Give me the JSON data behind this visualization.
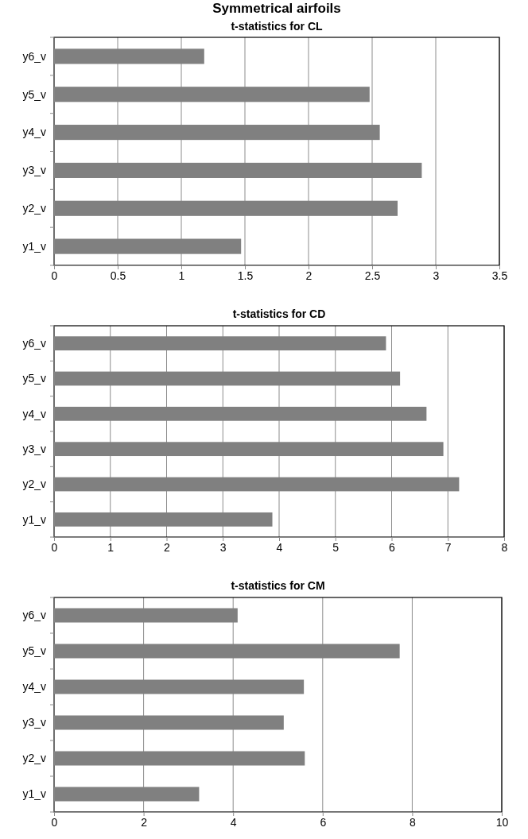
{
  "chart_data": [
    {
      "type": "bar",
      "orientation": "horizontal",
      "title": "Symmetrical airfoils",
      "subtitle": "t-statistics for CL",
      "categories": [
        "y6_v",
        "y5_v",
        "y4_v",
        "y3_v",
        "y2_v",
        "y1_v"
      ],
      "values": [
        1.18,
        2.48,
        2.56,
        2.89,
        2.7,
        1.47
      ],
      "color": "#808080",
      "xlim": [
        0,
        3.5
      ],
      "xticks": [
        0,
        0.5,
        1,
        1.5,
        2,
        2.5,
        3,
        3.5
      ],
      "grid": "x"
    },
    {
      "type": "bar",
      "orientation": "horizontal",
      "title": "t-statistics for CD",
      "categories": [
        "y6_v",
        "y5_v",
        "y4_v",
        "y3_v",
        "y2_v",
        "y1_v"
      ],
      "values": [
        5.9,
        6.15,
        6.62,
        6.92,
        7.2,
        3.88
      ],
      "color": "#808080",
      "xlim": [
        0,
        8
      ],
      "xticks": [
        0,
        1,
        2,
        3,
        4,
        5,
        6,
        7,
        8
      ],
      "grid": "x"
    },
    {
      "type": "bar",
      "orientation": "horizontal",
      "title": "t-statistics for CM",
      "categories": [
        "y6_v",
        "y5_v",
        "y4_v",
        "y3_v",
        "y2_v",
        "y1_v"
      ],
      "values": [
        4.1,
        7.72,
        5.58,
        5.13,
        5.6,
        3.24
      ],
      "color": "#808080",
      "xlim": [
        0,
        10
      ],
      "xticks": [
        0,
        2,
        4,
        6,
        8,
        10
      ],
      "grid": "x"
    }
  ]
}
